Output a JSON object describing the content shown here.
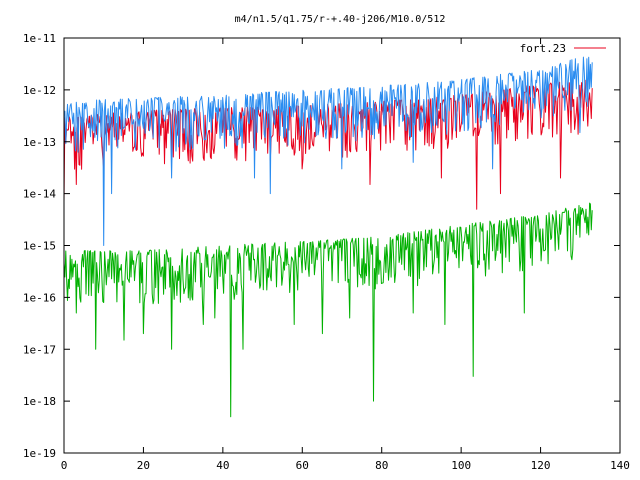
{
  "chart_data": {
    "type": "line",
    "title": "m4/n1.5/q1.75/r-+.40-j206/M10.0/512",
    "xlabel": "",
    "ylabel": "",
    "xlim": [
      0,
      140
    ],
    "ylim": [
      1e-19,
      1e-11
    ],
    "yscale": "log",
    "x_ticks": [
      0,
      20,
      40,
      60,
      80,
      100,
      120,
      140
    ],
    "x_tick_labels": [
      "0",
      "20",
      "40",
      "60",
      "80",
      "100",
      "120",
      "140"
    ],
    "y_ticks": [
      1e-19,
      1e-18,
      1e-17,
      1e-16,
      1e-15,
      1e-14,
      1e-13,
      1e-12,
      1e-11
    ],
    "y_tick_labels": [
      "1e-19",
      "1e-18",
      "1e-17",
      "1e-16",
      "1e-15",
      "1e-14",
      "1e-13",
      "1e-12",
      "1e-11"
    ],
    "grid": false,
    "legend_position": "top-right",
    "legend_label": "fort.23",
    "x_range": [
      0,
      133
    ],
    "samples_per_series": 600,
    "series": [
      {
        "name": "fort.23",
        "color": "#e8001c",
        "upper_envelope": [
          [
            0,
            3e-13
          ],
          [
            20,
            4e-13
          ],
          [
            40,
            4.5e-13
          ],
          [
            60,
            5e-13
          ],
          [
            80,
            6e-13
          ],
          [
            100,
            8e-13
          ],
          [
            120,
            1.3e-12
          ],
          [
            133,
            1.6e-12
          ]
        ],
        "notable_dips": [
          [
            0,
            7e-15
          ],
          [
            3,
            1.5e-14
          ],
          [
            10,
            3e-14
          ],
          [
            60,
            3e-14
          ],
          [
            77,
            1.5e-14
          ],
          [
            95,
            2e-14
          ],
          [
            104,
            5e-15
          ],
          [
            110,
            1e-14
          ],
          [
            125,
            2e-14
          ],
          [
            132,
            2e-13
          ]
        ]
      },
      {
        "color": "#2a8cf0",
        "upper_envelope": [
          [
            0,
            6e-13
          ],
          [
            20,
            7e-13
          ],
          [
            40,
            8e-13
          ],
          [
            60,
            1e-12
          ],
          [
            80,
            1.2e-12
          ],
          [
            100,
            1.6e-12
          ],
          [
            120,
            2.5e-12
          ],
          [
            133,
            5e-12
          ]
        ],
        "notable_dips": [
          [
            10,
            1e-15
          ],
          [
            12,
            1e-14
          ],
          [
            27,
            2e-14
          ],
          [
            48,
            2e-14
          ],
          [
            52,
            1e-14
          ],
          [
            70,
            3e-14
          ],
          [
            88,
            4e-14
          ],
          [
            108,
            3e-14
          ],
          [
            130,
            1.5e-13
          ]
        ]
      },
      {
        "color": "#00b000",
        "upper_envelope": [
          [
            0,
            8e-16
          ],
          [
            20,
            8e-16
          ],
          [
            40,
            1e-15
          ],
          [
            60,
            1.2e-15
          ],
          [
            80,
            1.5e-15
          ],
          [
            100,
            2.5e-15
          ],
          [
            120,
            4e-15
          ],
          [
            133,
            7e-15
          ]
        ],
        "notable_dips": [
          [
            3,
            5e-17
          ],
          [
            8,
            1e-17
          ],
          [
            15,
            1.5e-17
          ],
          [
            20,
            2e-17
          ],
          [
            27,
            1e-17
          ],
          [
            35,
            3e-17
          ],
          [
            38,
            4e-17
          ],
          [
            42,
            5e-19
          ],
          [
            45,
            1e-17
          ],
          [
            58,
            3e-17
          ],
          [
            65,
            2e-17
          ],
          [
            72,
            4e-17
          ],
          [
            78,
            1e-18
          ],
          [
            88,
            5e-17
          ],
          [
            96,
            3e-17
          ],
          [
            103,
            3e-18
          ],
          [
            116,
            5e-17
          ]
        ]
      }
    ]
  }
}
